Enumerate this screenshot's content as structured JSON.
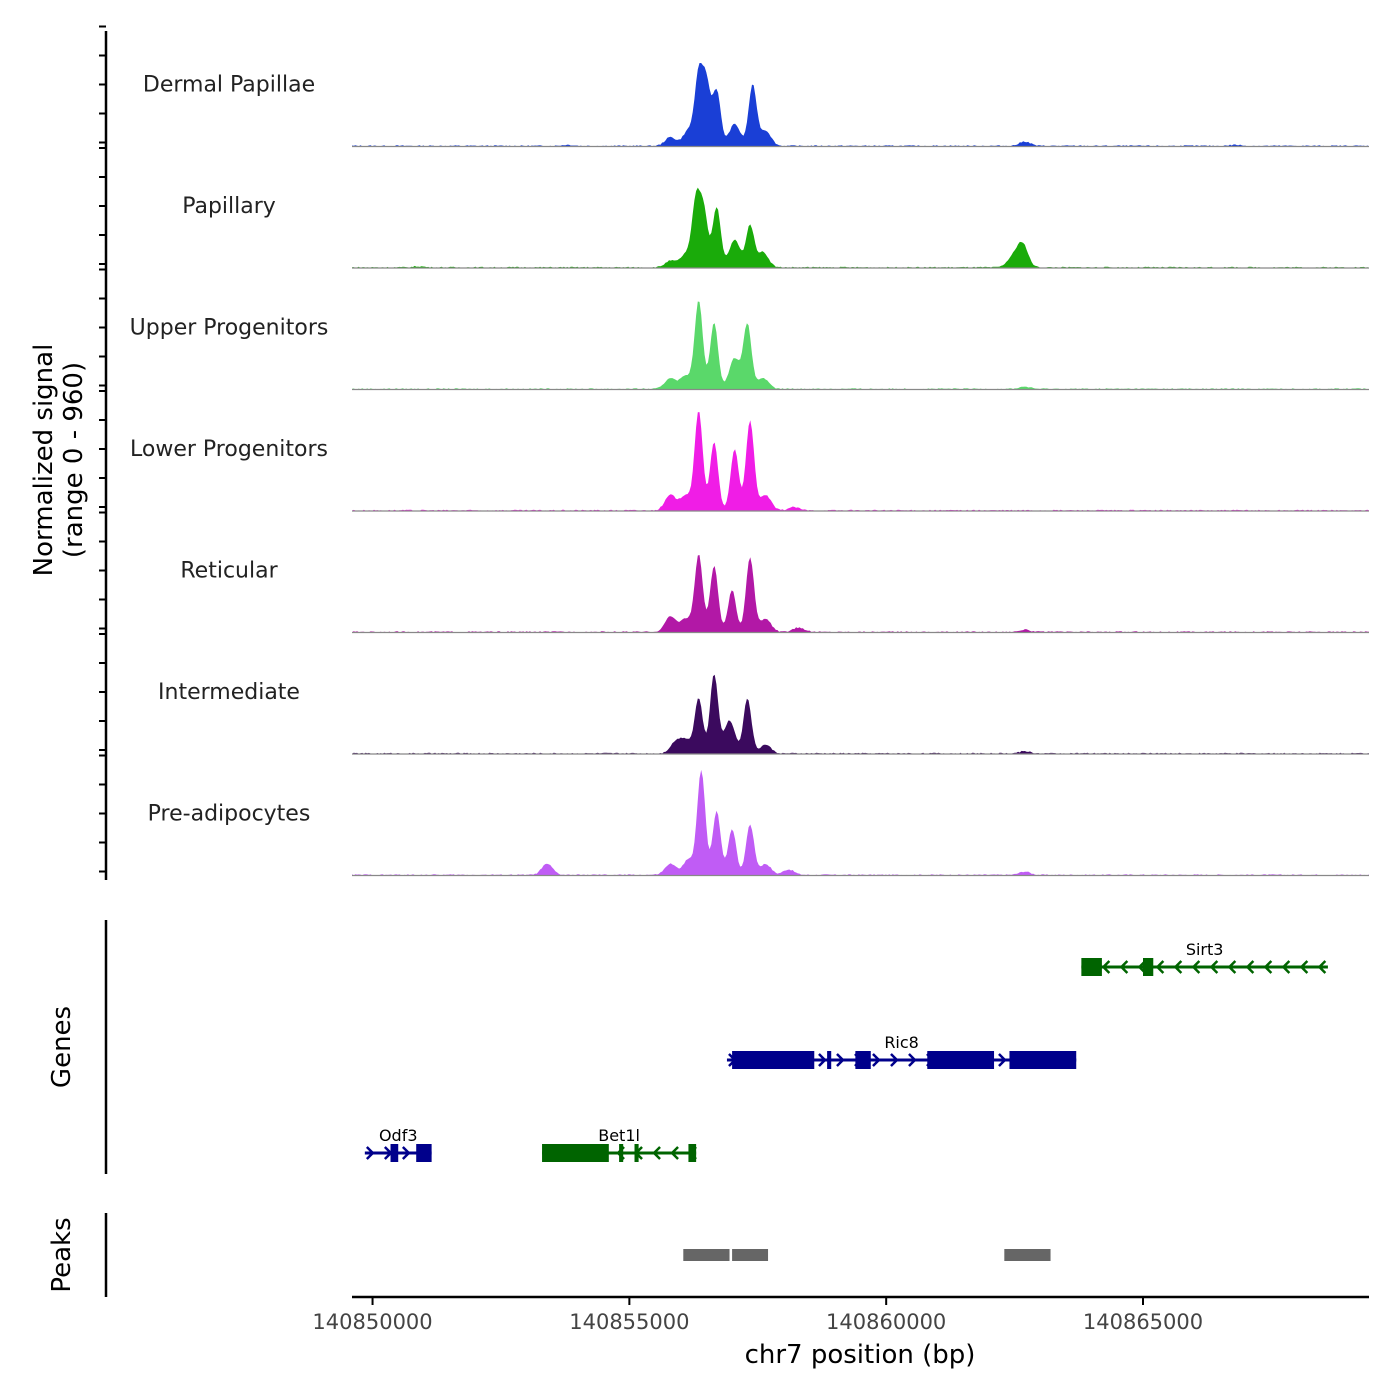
{
  "chart_data": {
    "type": "area",
    "title": "",
    "ylabel": "Normalized signal\n(range 0 - 960)",
    "ylabel_lines": [
      "Normalized signal",
      "(range 0 - 960)"
    ],
    "xlabel": "chr7 position (bp)",
    "signal_range": [
      0,
      960
    ],
    "xlim": [
      140849600,
      140869400
    ],
    "x_ticks": [
      140850000,
      140855000,
      140860000,
      140865000
    ],
    "x_tick_labels": [
      "140850000",
      "140855000",
      "140860000",
      "140865000"
    ],
    "tracks": [
      {
        "name": "Dermal Papillae",
        "color": "#1a3fd6",
        "peaks": [
          [
            140855800,
            0.08
          ],
          [
            140856150,
            0.14
          ],
          [
            140856350,
            0.62
          ],
          [
            140856500,
            0.55
          ],
          [
            140856700,
            0.5
          ],
          [
            140857050,
            0.2
          ],
          [
            140857400,
            0.55
          ],
          [
            140857650,
            0.14
          ],
          [
            140862700,
            0.04
          ],
          [
            140853800,
            0.01
          ],
          [
            140866800,
            0.01
          ]
        ]
      },
      {
        "name": "Papillary",
        "color": "#1aab0a",
        "peaks": [
          [
            140855800,
            0.06
          ],
          [
            140856100,
            0.12
          ],
          [
            140856300,
            0.6
          ],
          [
            140856450,
            0.5
          ],
          [
            140856700,
            0.55
          ],
          [
            140857050,
            0.25
          ],
          [
            140857350,
            0.38
          ],
          [
            140857600,
            0.14
          ],
          [
            140862450,
            0.08
          ],
          [
            140862650,
            0.22
          ],
          [
            140850900,
            0.01
          ]
        ]
      },
      {
        "name": "Upper Progenitors",
        "color": "#5ad86a",
        "peaks": [
          [
            140855800,
            0.1
          ],
          [
            140856100,
            0.12
          ],
          [
            140856350,
            0.8
          ],
          [
            140856650,
            0.6
          ],
          [
            140857050,
            0.28
          ],
          [
            140857300,
            0.58
          ],
          [
            140857600,
            0.1
          ],
          [
            140862700,
            0.02
          ]
        ]
      },
      {
        "name": "Lower Progenitors",
        "color": "#f01de6",
        "peaks": [
          [
            140855800,
            0.14
          ],
          [
            140856100,
            0.14
          ],
          [
            140856350,
            0.9
          ],
          [
            140856650,
            0.62
          ],
          [
            140857050,
            0.56
          ],
          [
            140857350,
            0.82
          ],
          [
            140857650,
            0.14
          ],
          [
            140858200,
            0.03
          ]
        ]
      },
      {
        "name": "Reticular",
        "color": "#b218a6",
        "peaks": [
          [
            140855800,
            0.14
          ],
          [
            140856100,
            0.12
          ],
          [
            140856350,
            0.7
          ],
          [
            140856650,
            0.6
          ],
          [
            140857000,
            0.38
          ],
          [
            140857350,
            0.68
          ],
          [
            140857650,
            0.12
          ],
          [
            140858300,
            0.04
          ],
          [
            140862700,
            0.02
          ]
        ]
      },
      {
        "name": "Intermediate",
        "color": "#3b0a5e",
        "peaks": [
          [
            140855900,
            0.1
          ],
          [
            140856100,
            0.12
          ],
          [
            140856350,
            0.5
          ],
          [
            140856650,
            0.72
          ],
          [
            140856950,
            0.3
          ],
          [
            140857300,
            0.5
          ],
          [
            140857650,
            0.08
          ],
          [
            140862700,
            0.02
          ]
        ]
      },
      {
        "name": "Pre-adipocytes",
        "color": "#c05cf5",
        "peaks": [
          [
            140853400,
            0.1
          ],
          [
            140855800,
            0.1
          ],
          [
            140856150,
            0.14
          ],
          [
            140856400,
            0.95
          ],
          [
            140856700,
            0.58
          ],
          [
            140857000,
            0.42
          ],
          [
            140857350,
            0.46
          ],
          [
            140857650,
            0.1
          ],
          [
            140858100,
            0.05
          ],
          [
            140862700,
            0.03
          ]
        ]
      }
    ],
    "genes_label": "Genes",
    "genes": [
      {
        "name": "Sirt3",
        "strand": "-",
        "color": "#006400",
        "start": 140863800,
        "end": 140868600,
        "exons": [
          [
            140863800,
            140864200
          ],
          [
            140865000,
            140865200
          ]
        ]
      },
      {
        "name": "Ric8",
        "strand": "+",
        "color": "#00008b",
        "start": 140856900,
        "end": 140863700,
        "exons": [
          [
            140857000,
            140858600
          ],
          [
            140858850,
            140858930
          ],
          [
            140859400,
            140859700
          ],
          [
            140860800,
            140862100
          ],
          [
            140862400,
            140863700
          ]
        ]
      },
      {
        "name": "Odf3",
        "strand": "+",
        "color": "#00008b",
        "start": 140849850,
        "end": 140851150,
        "exons": [
          [
            140850350,
            140850500
          ],
          [
            140850850,
            140851150
          ]
        ]
      },
      {
        "name": "Bet1l",
        "strand": "-",
        "color": "#006400",
        "start": 140853300,
        "end": 140856300,
        "exons": [
          [
            140853300,
            140854600
          ],
          [
            140854800,
            140854880
          ],
          [
            140855100,
            140855180
          ],
          [
            140856150,
            140856300
          ]
        ]
      }
    ],
    "peaks_label": "Peaks",
    "peak_regions": [
      [
        140856050,
        140856950
      ],
      [
        140857000,
        140857700
      ],
      [
        140862300,
        140863200
      ]
    ],
    "peak_color": "#666666"
  }
}
